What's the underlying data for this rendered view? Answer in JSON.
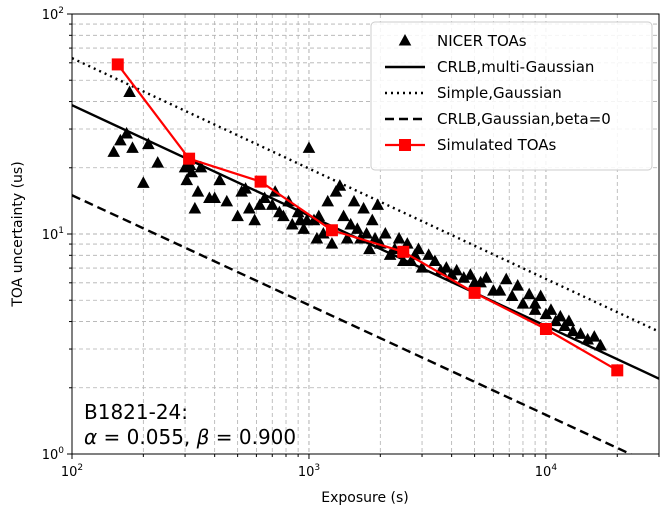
{
  "chart_data": {
    "type": "scatter",
    "xlabel": "Exposure (s)",
    "ylabel": "TOA uncertainty (us)",
    "xscale": "log",
    "yscale": "log",
    "xlim": [
      100,
      30000
    ],
    "ylim": [
      1,
      100
    ],
    "grid": "both-major-minor-dashed",
    "legend_position": "top-right",
    "x_ticks": [
      {
        "value": 100,
        "base": "10",
        "exp": "2"
      },
      {
        "value": 1000,
        "base": "10",
        "exp": "3"
      },
      {
        "value": 10000,
        "base": "10",
        "exp": "4"
      }
    ],
    "y_ticks": [
      {
        "value": 1,
        "base": "10",
        "exp": "0"
      },
      {
        "value": 10,
        "base": "10",
        "exp": "1"
      },
      {
        "value": 100,
        "base": "10",
        "exp": "2"
      }
    ],
    "annotation": {
      "line1": "B1821-24:",
      "alpha_sym": "α",
      "alpha_val": " = 0.055, ",
      "beta_sym": "β",
      "beta_val": " = 0.900"
    },
    "series": [
      {
        "name": "NICER TOAs",
        "kind": "scatter",
        "marker": "triangle",
        "color": "#000000",
        "points": [
          [
            150,
            23.5
          ],
          [
            160,
            26.5
          ],
          [
            170,
            28.5
          ],
          [
            175,
            44
          ],
          [
            180,
            24.5
          ],
          [
            200,
            17
          ],
          [
            210,
            25.5
          ],
          [
            230,
            21
          ],
          [
            300,
            20
          ],
          [
            305,
            17.5
          ],
          [
            315,
            20.5
          ],
          [
            320,
            19
          ],
          [
            330,
            13
          ],
          [
            340,
            15.5
          ],
          [
            350,
            20
          ],
          [
            380,
            14.5
          ],
          [
            400,
            14.5
          ],
          [
            420,
            17.5
          ],
          [
            450,
            14
          ],
          [
            500,
            12
          ],
          [
            520,
            15.5
          ],
          [
            540,
            16
          ],
          [
            560,
            13
          ],
          [
            590,
            11.5
          ],
          [
            620,
            13.5
          ],
          [
            650,
            14.5
          ],
          [
            700,
            13.5
          ],
          [
            720,
            15.5
          ],
          [
            750,
            12.5
          ],
          [
            780,
            12
          ],
          [
            820,
            14
          ],
          [
            850,
            11
          ],
          [
            900,
            12.5
          ],
          [
            920,
            11.5
          ],
          [
            950,
            10.5
          ],
          [
            980,
            11.5
          ],
          [
            1000,
            24.5
          ],
          [
            1050,
            11.5
          ],
          [
            1080,
            9.5
          ],
          [
            1100,
            12
          ],
          [
            1150,
            10
          ],
          [
            1200,
            14
          ],
          [
            1250,
            9
          ],
          [
            1300,
            15.5
          ],
          [
            1350,
            16.5
          ],
          [
            1400,
            12
          ],
          [
            1450,
            9.5
          ],
          [
            1500,
            11
          ],
          [
            1550,
            14
          ],
          [
            1600,
            10.5
          ],
          [
            1650,
            9.5
          ],
          [
            1700,
            13
          ],
          [
            1750,
            10
          ],
          [
            1800,
            8.5
          ],
          [
            1850,
            11.5
          ],
          [
            1900,
            9.5
          ],
          [
            1950,
            13.5
          ],
          [
            2000,
            9
          ],
          [
            2100,
            10
          ],
          [
            2200,
            8
          ],
          [
            2300,
            8.5
          ],
          [
            2400,
            9.5
          ],
          [
            2500,
            7.5
          ],
          [
            2600,
            9
          ],
          [
            2700,
            7.5
          ],
          [
            2800,
            8
          ],
          [
            2900,
            8.5
          ],
          [
            3000,
            7
          ],
          [
            3200,
            8
          ],
          [
            3400,
            7.5
          ],
          [
            3600,
            6.8
          ],
          [
            3800,
            7
          ],
          [
            4000,
            6.5
          ],
          [
            4200,
            6.8
          ],
          [
            4500,
            6.3
          ],
          [
            4800,
            6.5
          ],
          [
            5000,
            6
          ],
          [
            5300,
            6
          ],
          [
            5600,
            6.3
          ],
          [
            6000,
            5.5
          ],
          [
            6400,
            5.5
          ],
          [
            6800,
            6.2
          ],
          [
            7200,
            5.2
          ],
          [
            7600,
            5.8
          ],
          [
            8000,
            4.8
          ],
          [
            8500,
            5.3
          ],
          [
            9000,
            4.8
          ],
          [
            9500,
            5.2
          ],
          [
            10000,
            4.3
          ],
          [
            10500,
            4.5
          ],
          [
            11000,
            4
          ],
          [
            11500,
            4.2
          ],
          [
            12000,
            3.8
          ],
          [
            12500,
            4
          ],
          [
            13000,
            3.6
          ],
          [
            14000,
            3.5
          ],
          [
            15000,
            3.3
          ],
          [
            16000,
            3.4
          ],
          [
            17000,
            3.1
          ],
          [
            9000,
            4.5
          ]
        ]
      },
      {
        "name": "CRLB,multi-Gaussian",
        "kind": "line",
        "dash": "solid",
        "color": "#000000",
        "x": [
          100,
          30000
        ],
        "y": [
          38.5,
          2.2
        ]
      },
      {
        "name": "Simple,Gaussian",
        "kind": "line",
        "dash": "dotted",
        "color": "#000000",
        "x": [
          100,
          30000
        ],
        "y": [
          63,
          3.6
        ]
      },
      {
        "name": "CRLB,Gaussian,beta=0",
        "kind": "line",
        "dash": "dashed",
        "color": "#000000",
        "x": [
          100,
          30000
        ],
        "y": [
          15,
          0.87
        ]
      },
      {
        "name": "Simulated TOAs",
        "kind": "line-markers",
        "marker": "square",
        "color": "#ff0000",
        "x": [
          156,
          312,
          625,
          1250,
          2500,
          5000,
          10000,
          20000
        ],
        "y": [
          59,
          22,
          17.3,
          10.4,
          8.3,
          5.4,
          3.7,
          2.4
        ]
      }
    ]
  }
}
